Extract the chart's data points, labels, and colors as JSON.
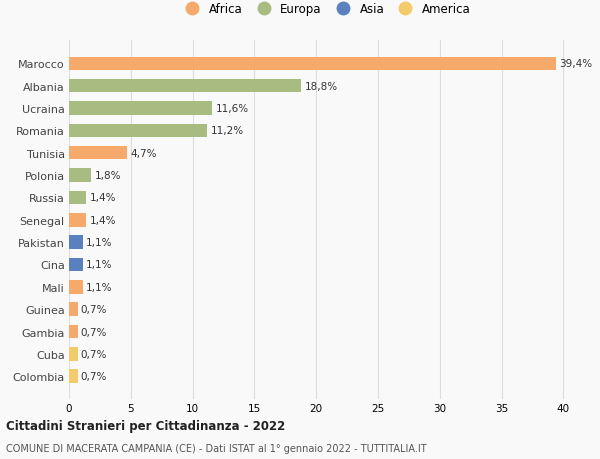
{
  "countries": [
    "Marocco",
    "Albania",
    "Ucraina",
    "Romania",
    "Tunisia",
    "Polonia",
    "Russia",
    "Senegal",
    "Pakistan",
    "Cina",
    "Mali",
    "Guinea",
    "Gambia",
    "Cuba",
    "Colombia"
  ],
  "values": [
    39.4,
    18.8,
    11.6,
    11.2,
    4.7,
    1.8,
    1.4,
    1.4,
    1.1,
    1.1,
    1.1,
    0.7,
    0.7,
    0.7,
    0.7
  ],
  "labels": [
    "39,4%",
    "18,8%",
    "11,6%",
    "11,2%",
    "4,7%",
    "1,8%",
    "1,4%",
    "1,4%",
    "1,1%",
    "1,1%",
    "1,1%",
    "0,7%",
    "0,7%",
    "0,7%",
    "0,7%"
  ],
  "continents": [
    "Africa",
    "Europa",
    "Europa",
    "Europa",
    "Africa",
    "Europa",
    "Europa",
    "Africa",
    "Asia",
    "Asia",
    "Africa",
    "Africa",
    "Africa",
    "America",
    "America"
  ],
  "colors": {
    "Africa": "#F5A96A",
    "Europa": "#A8BC82",
    "Asia": "#5B80C0",
    "America": "#F2CB6A"
  },
  "legend_order": [
    "Africa",
    "Europa",
    "Asia",
    "America"
  ],
  "xlim": [
    0,
    41.5
  ],
  "xticks": [
    0,
    5,
    10,
    15,
    20,
    25,
    30,
    35,
    40
  ],
  "title_main": "Cittadini Stranieri per Cittadinanza - 2022",
  "title_sub": "COMUNE DI MACERATA CAMPANIA (CE) - Dati ISTAT al 1° gennaio 2022 - TUTTITALIA.IT",
  "background_color": "#f9f9f9",
  "grid_color": "#dddddd",
  "bar_height": 0.6
}
